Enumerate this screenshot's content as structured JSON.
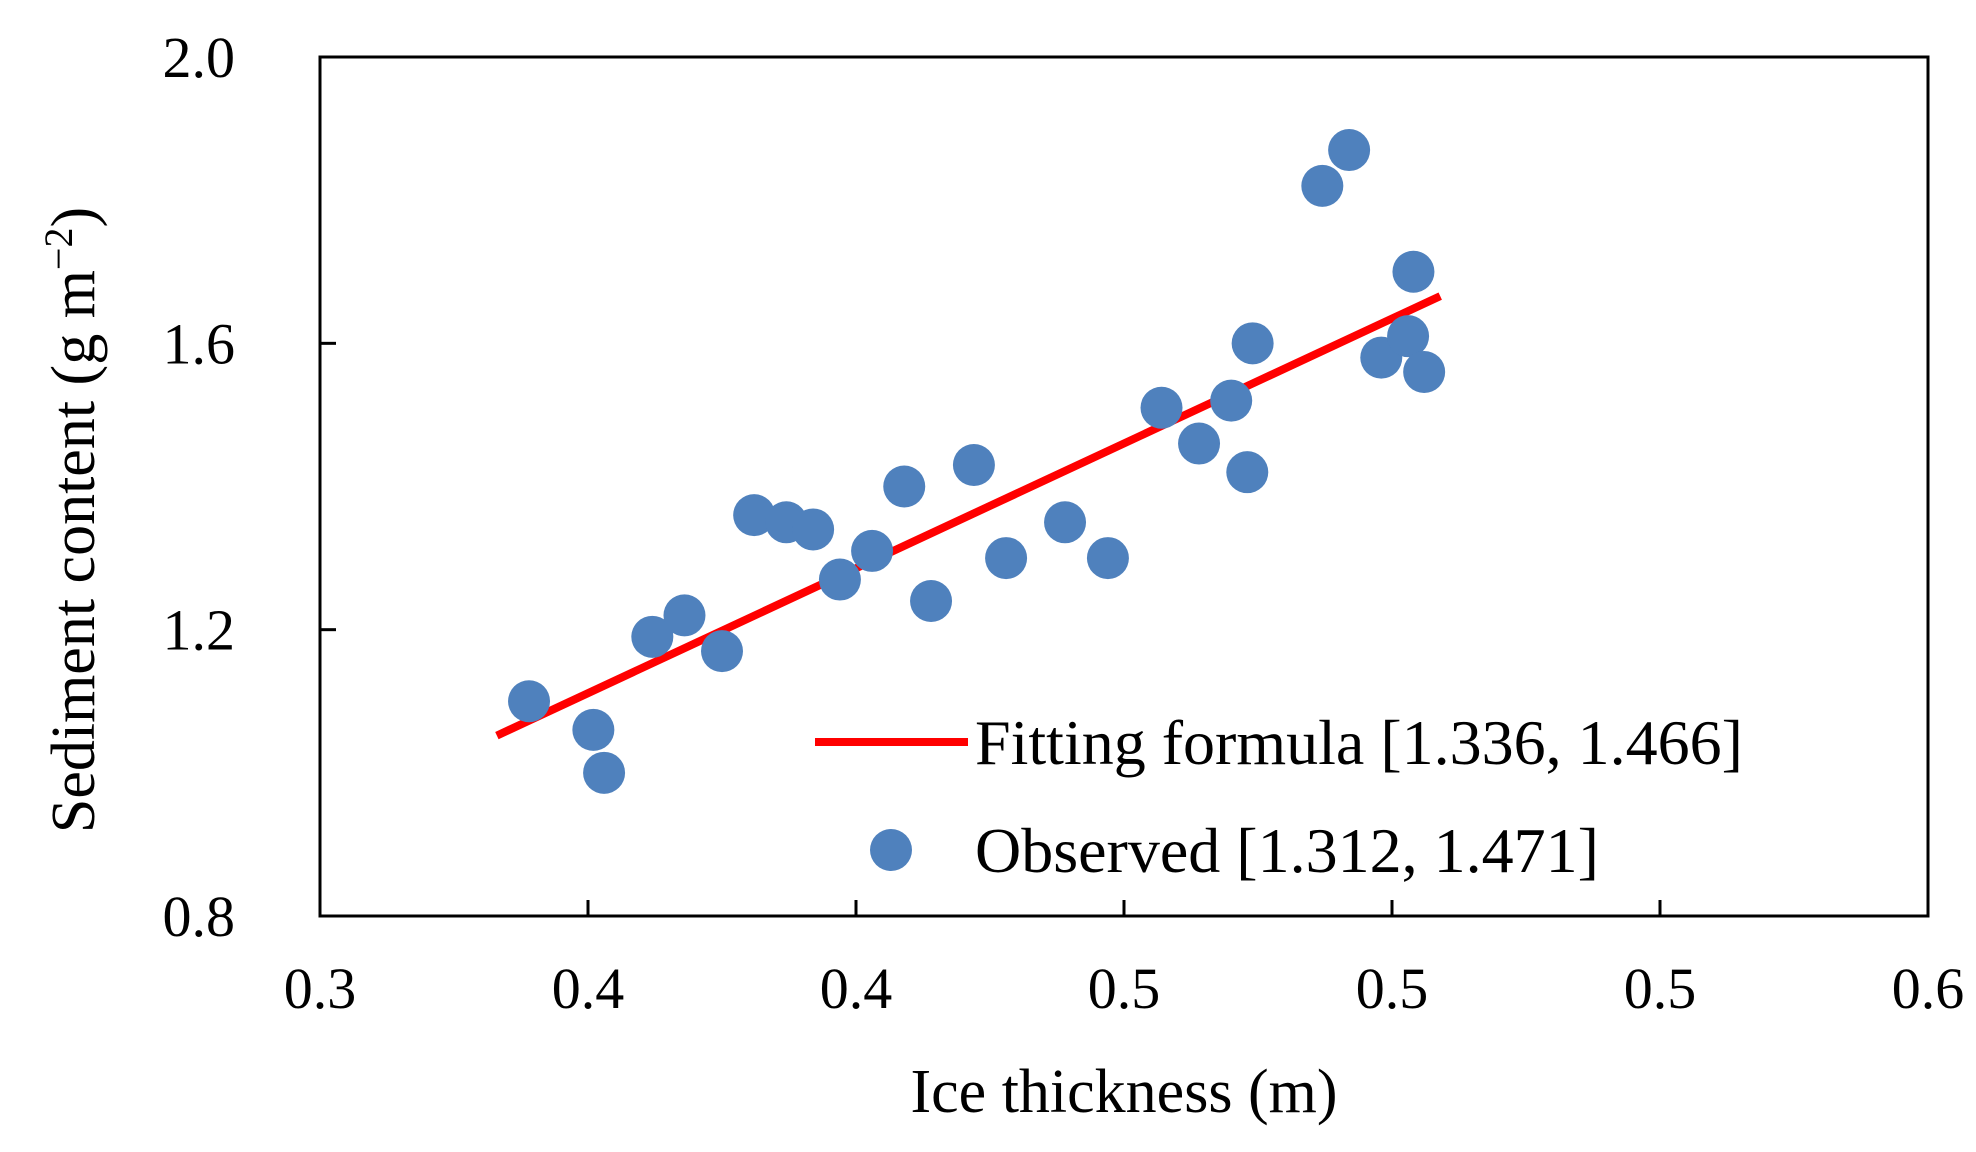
{
  "chart_data": {
    "type": "scatter",
    "xlabel": "Ice thickness (m)",
    "ylabel_main": "Sediment content (g m",
    "ylabel_sup": "−2",
    "ylabel_close": ")",
    "xlim": [
      0.3,
      0.6
    ],
    "ylim": [
      0.8,
      2.0
    ],
    "x_ticks": [
      0.3,
      0.35,
      0.4,
      0.45,
      0.5,
      0.55,
      0.6
    ],
    "x_tick_labels": [
      "0.3",
      "0.4",
      "0.4",
      "0.5",
      "0.5",
      "0.5",
      "0.6"
    ],
    "y_ticks": [
      0.8,
      1.2,
      1.6,
      2.0
    ],
    "y_tick_labels": [
      "0.8",
      "1.2",
      "1.6",
      "2.0"
    ],
    "grid": false,
    "legend_position": "bottom-right",
    "series": [
      {
        "name": "Fitting formula [1.336, 1.466]",
        "kind": "line",
        "color": "#ff0000",
        "points": [
          [
            0.333,
            1.052
          ],
          [
            0.509,
            1.666
          ]
        ]
      },
      {
        "name": "Observed [1.312, 1.471]",
        "kind": "scatter",
        "color": "#4f81bd",
        "points": [
          [
            0.339,
            1.1
          ],
          [
            0.351,
            1.06
          ],
          [
            0.353,
            1.0
          ],
          [
            0.362,
            1.19
          ],
          [
            0.368,
            1.22
          ],
          [
            0.375,
            1.17
          ],
          [
            0.381,
            1.36
          ],
          [
            0.387,
            1.35
          ],
          [
            0.392,
            1.34
          ],
          [
            0.397,
            1.27
          ],
          [
            0.403,
            1.31
          ],
          [
            0.409,
            1.4
          ],
          [
            0.414,
            1.24
          ],
          [
            0.422,
            1.43
          ],
          [
            0.428,
            1.3
          ],
          [
            0.439,
            1.35
          ],
          [
            0.447,
            1.3
          ],
          [
            0.457,
            1.51
          ],
          [
            0.464,
            1.46
          ],
          [
            0.47,
            1.52
          ],
          [
            0.473,
            1.42
          ],
          [
            0.474,
            1.6
          ],
          [
            0.487,
            1.82
          ],
          [
            0.492,
            1.87
          ],
          [
            0.498,
            1.58
          ],
          [
            0.503,
            1.61
          ],
          [
            0.504,
            1.7
          ],
          [
            0.506,
            1.56
          ]
        ]
      }
    ]
  }
}
